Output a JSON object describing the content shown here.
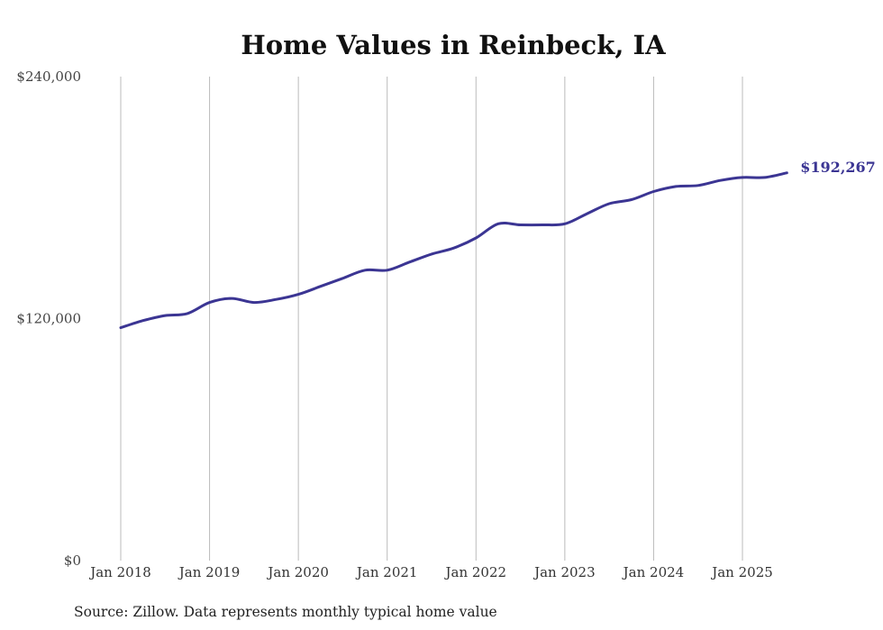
{
  "chart_data": {
    "type": "line",
    "title": "Home Values in Reinbeck, IA",
    "xlabel": "",
    "ylabel": "",
    "source": "Source: Zillow. Data represents monthly typical home value",
    "ylim": [
      0,
      240000
    ],
    "y_ticks": [
      {
        "value": 0,
        "label": "$0"
      },
      {
        "value": 120000,
        "label": "$120,000"
      },
      {
        "value": 240000,
        "label": "$240,000"
      }
    ],
    "x_ticks": [
      "Jan 2018",
      "Jan 2019",
      "Jan 2020",
      "Jan 2021",
      "Jan 2022",
      "Jan 2023",
      "Jan 2024",
      "Jan 2025"
    ],
    "grid": "vertical",
    "series_color": "#3b3593",
    "grid_color": "#bbbbbb",
    "end_label": "$192,267",
    "series": [
      {
        "points": [
          [
            "2018-01",
            115500
          ],
          [
            "2018-04",
            119000
          ],
          [
            "2018-07",
            121500
          ],
          [
            "2018-10",
            122500
          ],
          [
            "2019-01",
            128000
          ],
          [
            "2019-04",
            130000
          ],
          [
            "2019-07",
            128000
          ],
          [
            "2019-10",
            129500
          ],
          [
            "2020-01",
            132000
          ],
          [
            "2020-04",
            136000
          ],
          [
            "2020-07",
            140000
          ],
          [
            "2020-10",
            144000
          ],
          [
            "2021-01",
            144000
          ],
          [
            "2021-04",
            148000
          ],
          [
            "2021-07",
            152000
          ],
          [
            "2021-10",
            155000
          ],
          [
            "2022-01",
            160000
          ],
          [
            "2022-04",
            167000
          ],
          [
            "2022-07",
            166500
          ],
          [
            "2022-10",
            166500
          ],
          [
            "2023-01",
            167000
          ],
          [
            "2023-04",
            172000
          ],
          [
            "2023-07",
            177000
          ],
          [
            "2023-10",
            179000
          ],
          [
            "2024-01",
            183000
          ],
          [
            "2024-04",
            185500
          ],
          [
            "2024-07",
            186000
          ],
          [
            "2024-10",
            188500
          ],
          [
            "2025-01",
            190000
          ],
          [
            "2025-04",
            190000
          ],
          [
            "2025-07",
            192267
          ]
        ]
      }
    ]
  }
}
